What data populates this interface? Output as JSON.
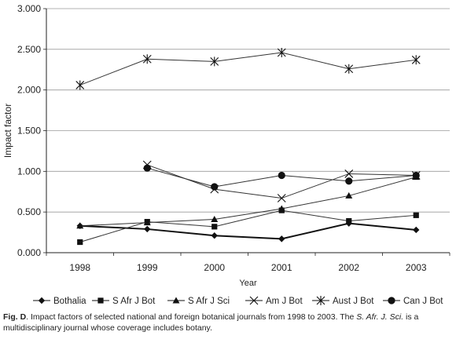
{
  "chart_data": {
    "type": "line",
    "xlabel": "Year",
    "ylabel": "Impact factor",
    "ylim": [
      0,
      3
    ],
    "y_ticks": [
      "0.000",
      "0.500",
      "1.000",
      "1.500",
      "2.000",
      "2.500",
      "3.000"
    ],
    "categories": [
      "1998",
      "1999",
      "2000",
      "2001",
      "2002",
      "2003"
    ],
    "grid": "horizontal",
    "legend_position": "bottom",
    "series": [
      {
        "name": "Bothalia",
        "marker": "diamond",
        "values": [
          0.33,
          0.29,
          0.21,
          0.17,
          0.36,
          0.28
        ]
      },
      {
        "name": "S Afr J Bot",
        "marker": "square",
        "values": [
          0.13,
          0.38,
          0.32,
          0.52,
          0.39,
          0.46
        ]
      },
      {
        "name": "S Afr J Sci",
        "marker": "triangle",
        "values": [
          0.33,
          0.37,
          0.41,
          0.54,
          0.7,
          0.93
        ]
      },
      {
        "name": "Am J Bot",
        "marker": "x",
        "values": [
          null,
          1.08,
          0.78,
          0.67,
          0.97,
          0.95
        ]
      },
      {
        "name": "Aust J Bot",
        "marker": "star",
        "values": [
          2.06,
          2.38,
          2.35,
          2.46,
          2.26,
          2.37
        ]
      },
      {
        "name": "Can J Bot",
        "marker": "circle",
        "values": [
          null,
          1.04,
          0.81,
          0.95,
          0.88,
          0.95
        ]
      }
    ]
  },
  "caption": {
    "label": "Fig. D",
    "text_1": ". Impact factors of selected national and foreign botanical journals from 1998 to 2003. The ",
    "journal": "S. Afr. J. Sci.",
    "text_2": " is a multidisciplinary journal whose coverage includes botany."
  }
}
